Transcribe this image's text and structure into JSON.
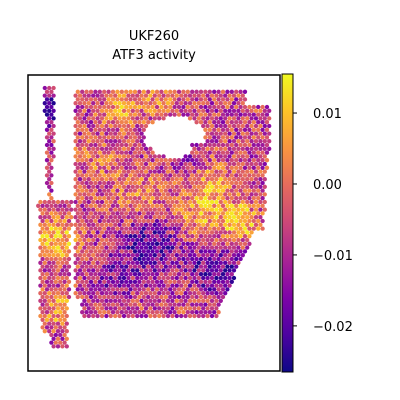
{
  "chart_data": {
    "type": "heatmap",
    "title_lines": [
      "UKF260",
      "ATF3 activity"
    ],
    "xlabel": "",
    "ylabel": "",
    "grid": false,
    "colormap": "plasma",
    "colorbar": {
      "range": [
        -0.0265,
        0.0155
      ],
      "ticks": [
        0.01,
        0.0,
        -0.01,
        -0.02
      ],
      "tick_labels": [
        "0.01",
        "0.00",
        "−0.01",
        "−0.02"
      ]
    },
    "spot_layout": "hexagonal spatial transcriptomics spots",
    "value_range_observed": [
      -0.025,
      0.014
    ]
  }
}
